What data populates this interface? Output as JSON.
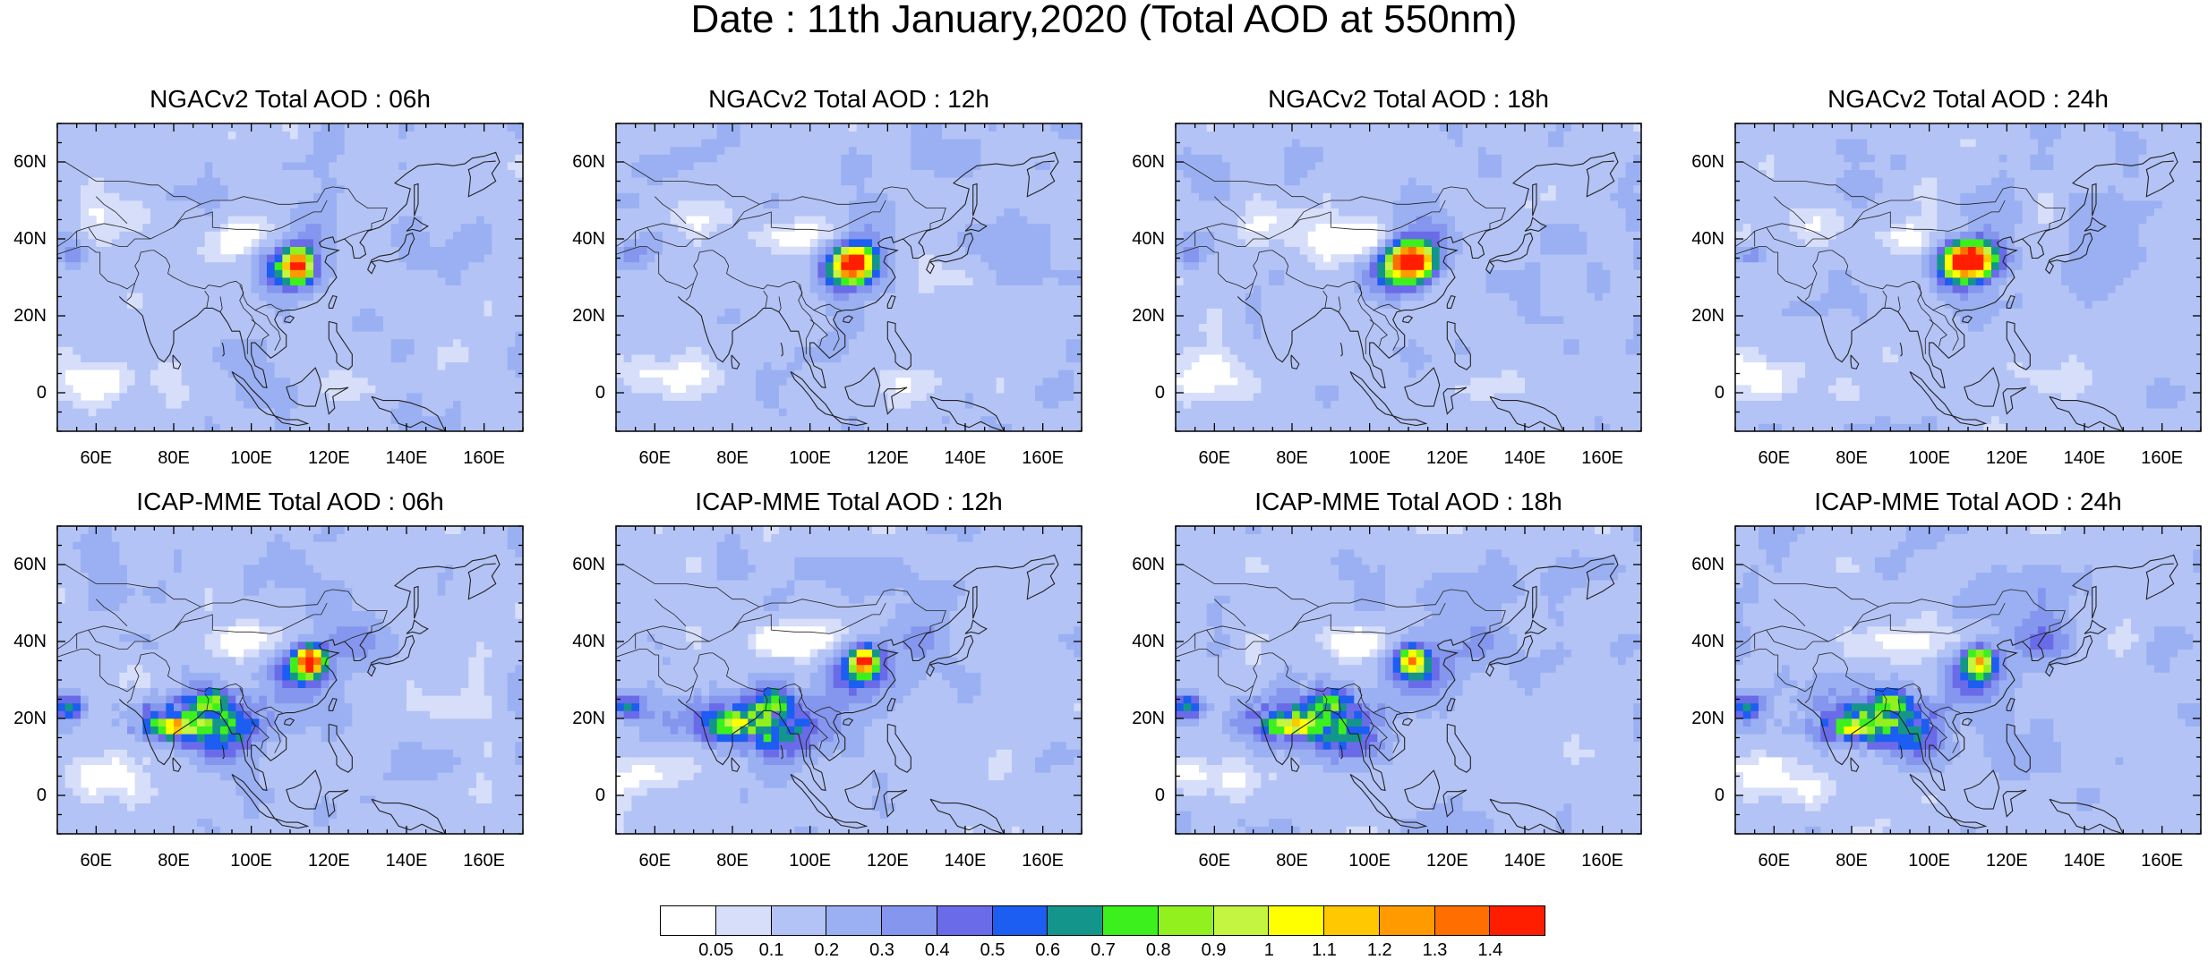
{
  "title": "Date : 11th January,2020 (Total AOD at 550nm)",
  "axis": {
    "y_ticks": [
      "60N",
      "40N",
      "20N",
      "0"
    ],
    "y_values": [
      60,
      40,
      20,
      0
    ],
    "x_ticks": [
      "60E",
      "80E",
      "100E",
      "120E",
      "140E",
      "160E"
    ],
    "x_values": [
      60,
      80,
      100,
      120,
      140,
      160
    ],
    "lon_range": [
      50,
      170
    ],
    "lat_range": [
      -10,
      70
    ]
  },
  "panels": [
    {
      "title": "NGACv2 Total AOD : 06h",
      "model": "NGACv2",
      "hour": "06h"
    },
    {
      "title": "NGACv2 Total AOD : 12h",
      "model": "NGACv2",
      "hour": "12h"
    },
    {
      "title": "NGACv2 Total AOD : 18h",
      "model": "NGACv2",
      "hour": "18h"
    },
    {
      "title": "NGACv2 Total AOD : 24h",
      "model": "NGACv2",
      "hour": "24h"
    },
    {
      "title": "ICAP-MME Total AOD : 06h",
      "model": "ICAP-MME",
      "hour": "06h"
    },
    {
      "title": "ICAP-MME Total AOD : 12h",
      "model": "ICAP-MME",
      "hour": "12h"
    },
    {
      "title": "ICAP-MME Total AOD : 18h",
      "model": "ICAP-MME",
      "hour": "18h"
    },
    {
      "title": "ICAP-MME Total AOD : 24h",
      "model": "ICAP-MME",
      "hour": "24h"
    }
  ],
  "colorbar": {
    "labels": [
      "0.05",
      "0.1",
      "0.2",
      "0.3",
      "0.4",
      "0.5",
      "0.6",
      "0.7",
      "0.8",
      "0.9",
      "1",
      "1.1",
      "1.2",
      "1.3",
      "1.4"
    ],
    "colors": [
      "#ffffff",
      "#d6defa",
      "#b4c3f5",
      "#9bb0f2",
      "#8596ee",
      "#6a6be8",
      "#1c5df2",
      "#14958c",
      "#3cf01e",
      "#91f01e",
      "#c3f541",
      "#ffff00",
      "#ffc800",
      "#ff9b00",
      "#ff6e00",
      "#ff1e00"
    ]
  }
}
